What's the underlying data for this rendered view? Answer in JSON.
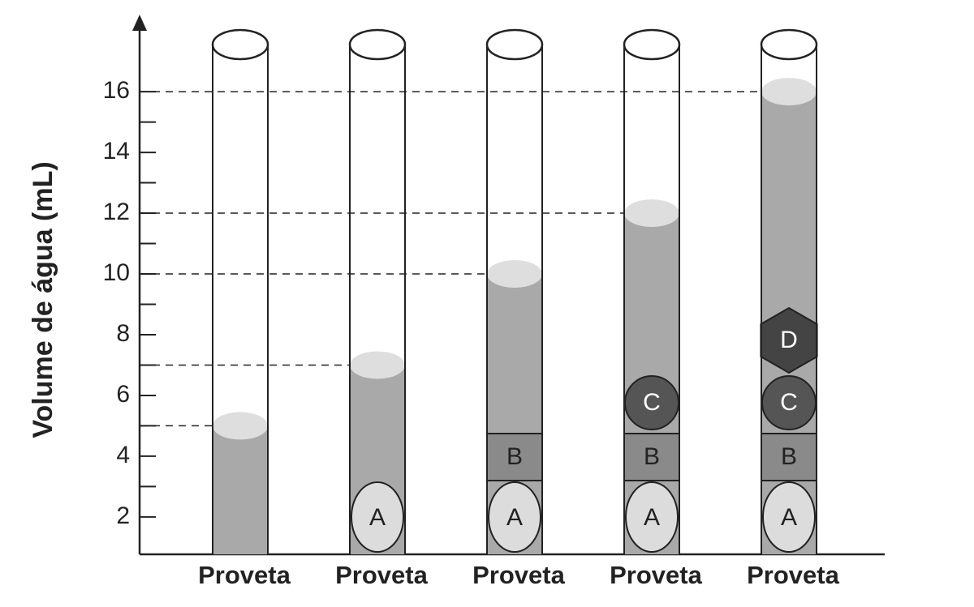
{
  "axis": {
    "label": "Volume de água (mL)",
    "ylim": [
      0.77,
      18.35
    ],
    "yticks": [
      2,
      4,
      6,
      8,
      10,
      12,
      14,
      16
    ],
    "minor_yticks": [
      3,
      5,
      7,
      9,
      11,
      13,
      15
    ]
  },
  "cylinders": [
    {
      "label": "Proveta",
      "level": 5,
      "objects": []
    },
    {
      "label": "Proveta",
      "level": 7,
      "objects": [
        "A"
      ]
    },
    {
      "label": "Proveta",
      "level": 10,
      "objects": [
        "A",
        "B"
      ]
    },
    {
      "label": "Proveta",
      "level": 12,
      "objects": [
        "A",
        "B",
        "C"
      ]
    },
    {
      "label": "Proveta",
      "level": 16,
      "objects": [
        "A",
        "B",
        "C",
        "D"
      ]
    }
  ]
}
